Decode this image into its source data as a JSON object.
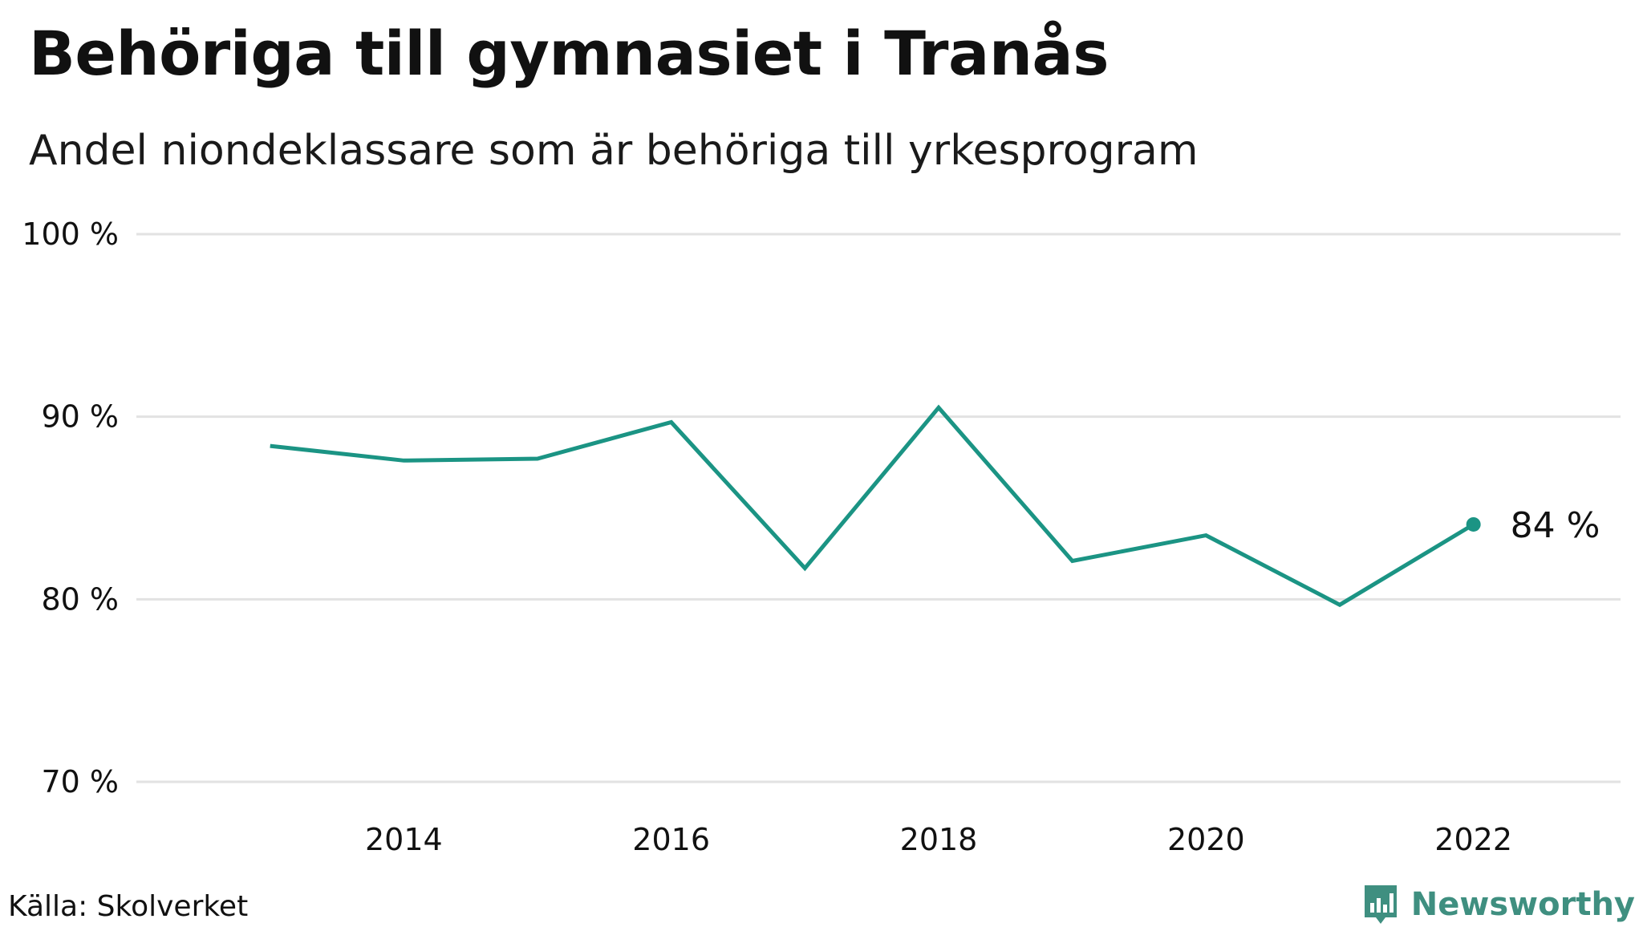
{
  "title": "Behöriga till gymnasiet i Tranås",
  "subtitle": "Andel niondeklassare som är behöriga till yrkesprogram",
  "source": "Källa: Skolverket",
  "brand": {
    "name": "Newsworthy",
    "icon": "bar-chart-speech-bubble-icon",
    "color": "#3f8f80"
  },
  "colors": {
    "line": "#1b9484",
    "grid": "#e2e2e2",
    "text": "#111111"
  },
  "chart_data": {
    "type": "line",
    "title": "Behöriga till gymnasiet i Tranås",
    "subtitle": "Andel niondeklassare som är behöriga till yrkesprogram",
    "x": [
      2013,
      2014,
      2015,
      2016,
      2017,
      2018,
      2019,
      2020,
      2021,
      2022
    ],
    "series": [
      {
        "values": [
          88.4,
          87.6,
          87.7,
          89.7,
          81.7,
          90.5,
          82.1,
          83.5,
          79.7,
          84.1
        ]
      }
    ],
    "xticks": [
      2014,
      2016,
      2018,
      2020,
      2022
    ],
    "xticklabels": [
      "2014",
      "2016",
      "2018",
      "2020",
      "2022"
    ],
    "xlim": [
      2012.0,
      2023.1
    ],
    "yticks": [
      70,
      80,
      90,
      100
    ],
    "yticklabels": [
      "70 %",
      "80 %",
      "90 %",
      "100 %"
    ],
    "ylim": [
      70,
      100
    ],
    "grid": true,
    "end_label": "84  %",
    "end_marker": true
  }
}
